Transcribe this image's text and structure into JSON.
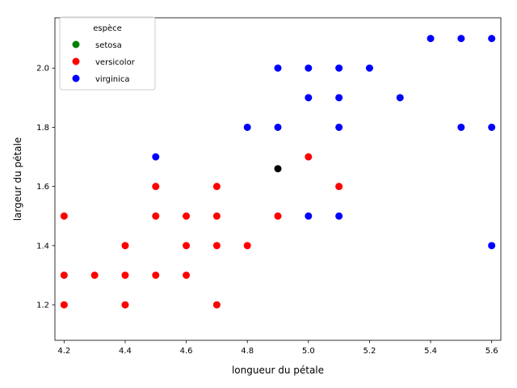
{
  "chart_data": {
    "type": "scatter",
    "title": "",
    "xlabel": "longueur du pétale",
    "ylabel": "largeur du pétale",
    "xlim": [
      4.17,
      5.63
    ],
    "ylim": [
      1.08,
      2.17
    ],
    "xticks": [
      "4.2",
      "4.4",
      "4.6",
      "4.8",
      "5.0",
      "5.2",
      "5.4",
      "5.6"
    ],
    "yticks": [
      "1.2",
      "1.4",
      "1.6",
      "1.8",
      "2.0"
    ],
    "grid": false,
    "legend": {
      "title": "espèce",
      "placement": "top-left",
      "entries": [
        {
          "name": "setosa",
          "color": "#008000"
        },
        {
          "name": "versicolor",
          "color": "#ff0000"
        },
        {
          "name": "virginica",
          "color": "#0000ff"
        }
      ]
    },
    "series": [
      {
        "name": "setosa",
        "color": "#008000",
        "points": []
      },
      {
        "name": "versicolor",
        "color": "#ff0000",
        "points": [
          [
            4.2,
            1.5
          ],
          [
            4.2,
            1.3
          ],
          [
            4.2,
            1.2
          ],
          [
            4.3,
            1.3
          ],
          [
            4.4,
            1.4
          ],
          [
            4.4,
            1.3
          ],
          [
            4.4,
            1.2
          ],
          [
            4.5,
            1.6
          ],
          [
            4.5,
            1.5
          ],
          [
            4.5,
            1.3
          ],
          [
            4.6,
            1.5
          ],
          [
            4.6,
            1.4
          ],
          [
            4.6,
            1.3
          ],
          [
            4.7,
            1.6
          ],
          [
            4.7,
            1.5
          ],
          [
            4.7,
            1.4
          ],
          [
            4.7,
            1.2
          ],
          [
            4.8,
            1.4
          ],
          [
            4.9,
            1.5
          ],
          [
            5.0,
            1.7
          ],
          [
            5.1,
            1.6
          ]
        ]
      },
      {
        "name": "virginica",
        "color": "#0000ff",
        "points": [
          [
            4.5,
            1.7
          ],
          [
            4.8,
            1.8
          ],
          [
            4.9,
            2.0
          ],
          [
            4.9,
            1.8
          ],
          [
            5.0,
            2.0
          ],
          [
            5.0,
            1.9
          ],
          [
            5.0,
            1.5
          ],
          [
            5.1,
            2.0
          ],
          [
            5.1,
            1.9
          ],
          [
            5.1,
            1.8
          ],
          [
            5.1,
            1.5
          ],
          [
            5.2,
            2.0
          ],
          [
            5.3,
            1.9
          ],
          [
            5.4,
            2.1
          ],
          [
            5.5,
            2.1
          ],
          [
            5.5,
            1.8
          ],
          [
            5.6,
            2.1
          ],
          [
            5.6,
            1.8
          ],
          [
            5.6,
            1.4
          ]
        ]
      },
      {
        "name": "",
        "color": "#000000",
        "points": [
          [
            4.9,
            1.66
          ]
        ]
      }
    ]
  }
}
